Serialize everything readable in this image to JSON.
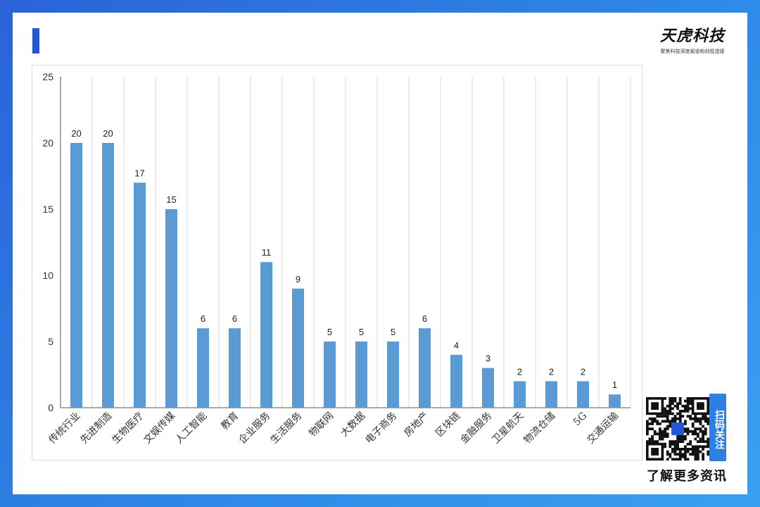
{
  "brand": {
    "logo_text": "天虎科技",
    "tagline": "聚焦科技深度报道和创投连接"
  },
  "footer": {
    "qr_label": "扫码关注",
    "learn_more": "了解更多资讯"
  },
  "colors": {
    "bar": "#5b9bd5",
    "accent": "#2457d6",
    "background_gradient_start": "#2a63d8",
    "background_gradient_end": "#3aa0f0"
  },
  "chart_data": {
    "type": "bar",
    "title": "",
    "xlabel": "",
    "ylabel": "",
    "ylim": [
      0,
      25
    ],
    "yticks": [
      0,
      5,
      10,
      15,
      20,
      25
    ],
    "grid": "vertical",
    "categories": [
      "传统行业",
      "先进制造",
      "生物医疗",
      "文娱传媒",
      "人工智能",
      "教育",
      "企业服务",
      "生活服务",
      "物联网",
      "大数据",
      "电子商务",
      "房地产",
      "区块链",
      "金融服务",
      "卫星航天",
      "物流仓储",
      "5G",
      "交通运输"
    ],
    "values": [
      20,
      20,
      17,
      15,
      6,
      6,
      11,
      9,
      5,
      5,
      5,
      6,
      4,
      3,
      2,
      2,
      2,
      1
    ]
  }
}
